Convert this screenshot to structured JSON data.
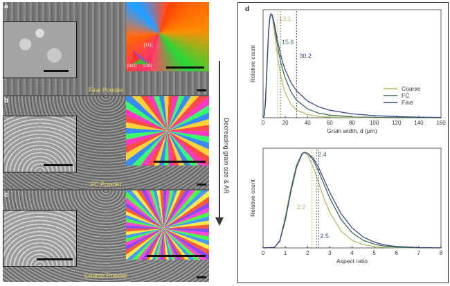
{
  "panels": [
    {
      "label": "a",
      "caption": "Fine Powder"
    },
    {
      "label": "b",
      "caption": "FC Powder"
    },
    {
      "label": "c",
      "caption": "Coarse Powder"
    }
  ],
  "ipf_legend": {
    "top": "[111]",
    "left": "[001]",
    "right": "[110]"
  },
  "arrow_label": "Decreasing grain size & AR",
  "plots_label": "d",
  "colors": {
    "coarse": "#b5b96a",
    "fc": "#3f6e5a",
    "fine": "#3a4a86",
    "caption": "#e8d35a"
  },
  "chart_data": [
    {
      "type": "line",
      "xlabel": "Grain width, d (μm)",
      "ylabel": "Relative count",
      "xlim": [
        0,
        160
      ],
      "xticks": [
        0,
        20,
        40,
        60,
        80,
        100,
        120,
        140,
        160
      ],
      "legend": "right",
      "series": [
        {
          "name": "Coarse",
          "key": "coarse",
          "x": [
            0,
            1,
            2,
            3,
            4,
            5,
            6,
            7,
            8,
            9,
            10,
            12,
            14,
            16,
            18,
            20,
            25,
            30,
            40,
            50,
            60,
            80,
            100,
            120,
            140,
            160
          ],
          "y": [
            0,
            0.03,
            0.15,
            0.38,
            0.63,
            0.83,
            0.95,
            1.0,
            0.98,
            0.92,
            0.84,
            0.67,
            0.52,
            0.4,
            0.31,
            0.24,
            0.13,
            0.075,
            0.03,
            0.013,
            0.006,
            0.002,
            0.001,
            0.0,
            0.0,
            0.0
          ]
        },
        {
          "name": "FC",
          "key": "fc",
          "x": [
            0,
            1,
            2,
            3,
            4,
            5,
            6,
            7,
            8,
            9,
            10,
            12,
            14,
            16,
            18,
            20,
            25,
            30,
            40,
            50,
            60,
            80,
            100,
            120,
            140,
            160
          ],
          "y": [
            0,
            0.02,
            0.13,
            0.36,
            0.62,
            0.84,
            0.96,
            1.0,
            0.99,
            0.95,
            0.89,
            0.76,
            0.63,
            0.53,
            0.45,
            0.38,
            0.25,
            0.17,
            0.085,
            0.045,
            0.025,
            0.009,
            0.004,
            0.002,
            0.001,
            0.0
          ]
        },
        {
          "name": "Fine",
          "key": "fine",
          "x": [
            0,
            1,
            2,
            3,
            4,
            5,
            6,
            7,
            8,
            9,
            10,
            12,
            14,
            16,
            18,
            20,
            25,
            30,
            40,
            50,
            60,
            80,
            100,
            120,
            140,
            160
          ],
          "y": [
            0,
            0.02,
            0.12,
            0.34,
            0.6,
            0.82,
            0.95,
            1.0,
            0.99,
            0.96,
            0.91,
            0.8,
            0.69,
            0.6,
            0.52,
            0.46,
            0.34,
            0.26,
            0.16,
            0.105,
            0.072,
            0.037,
            0.02,
            0.011,
            0.006,
            0.003
          ]
        }
      ],
      "markers": [
        {
          "x": 13.1,
          "label": "13.1",
          "key": "coarse"
        },
        {
          "x": 15.6,
          "label": "15.6",
          "key": "fc"
        },
        {
          "x": 30.2,
          "label": "30.2",
          "key": "fine"
        }
      ]
    },
    {
      "type": "line",
      "xlabel": "Aspect ratio",
      "ylabel": "Relative count",
      "xlim": [
        0,
        8
      ],
      "xticks": [
        0,
        1,
        2,
        3,
        4,
        5,
        6,
        7,
        8
      ],
      "series": [
        {
          "key": "coarse",
          "x": [
            0,
            0.5,
            0.75,
            1.0,
            1.25,
            1.5,
            1.75,
            1.85,
            2.0,
            2.25,
            2.5,
            2.75,
            3.0,
            3.5,
            4.0,
            4.5,
            5.0,
            5.5,
            6.0,
            7.0,
            8.0
          ],
          "y": [
            0,
            0.005,
            0.08,
            0.33,
            0.63,
            0.87,
            0.99,
            1.0,
            0.97,
            0.85,
            0.68,
            0.51,
            0.37,
            0.18,
            0.08,
            0.035,
            0.015,
            0.006,
            0.002,
            0.0,
            0.0
          ]
        },
        {
          "key": "fc",
          "x": [
            0,
            0.5,
            0.75,
            1.0,
            1.25,
            1.5,
            1.75,
            1.85,
            2.0,
            2.25,
            2.5,
            2.75,
            3.0,
            3.5,
            4.0,
            4.5,
            5.0,
            5.5,
            6.0,
            7.0,
            8.0
          ],
          "y": [
            0,
            0.004,
            0.07,
            0.3,
            0.6,
            0.85,
            0.98,
            1.0,
            0.99,
            0.92,
            0.8,
            0.66,
            0.52,
            0.3,
            0.16,
            0.08,
            0.04,
            0.018,
            0.008,
            0.002,
            0.0
          ]
        },
        {
          "key": "fine",
          "x": [
            0,
            0.5,
            0.75,
            1.0,
            1.25,
            1.5,
            1.75,
            1.85,
            2.0,
            2.25,
            2.5,
            2.75,
            3.0,
            3.5,
            4.0,
            4.5,
            5.0,
            5.5,
            6.0,
            7.0,
            8.0
          ],
          "y": [
            0,
            0.004,
            0.07,
            0.29,
            0.59,
            0.84,
            0.98,
            1.0,
            0.99,
            0.94,
            0.84,
            0.71,
            0.58,
            0.36,
            0.21,
            0.115,
            0.06,
            0.03,
            0.015,
            0.004,
            0.001
          ]
        }
      ],
      "markers": [
        {
          "x": 2.2,
          "label": "2.2",
          "key": "coarse"
        },
        {
          "x": 2.4,
          "label": "2.4",
          "key": "fc"
        },
        {
          "x": 2.5,
          "label": "2.5",
          "key": "fine"
        }
      ]
    }
  ]
}
